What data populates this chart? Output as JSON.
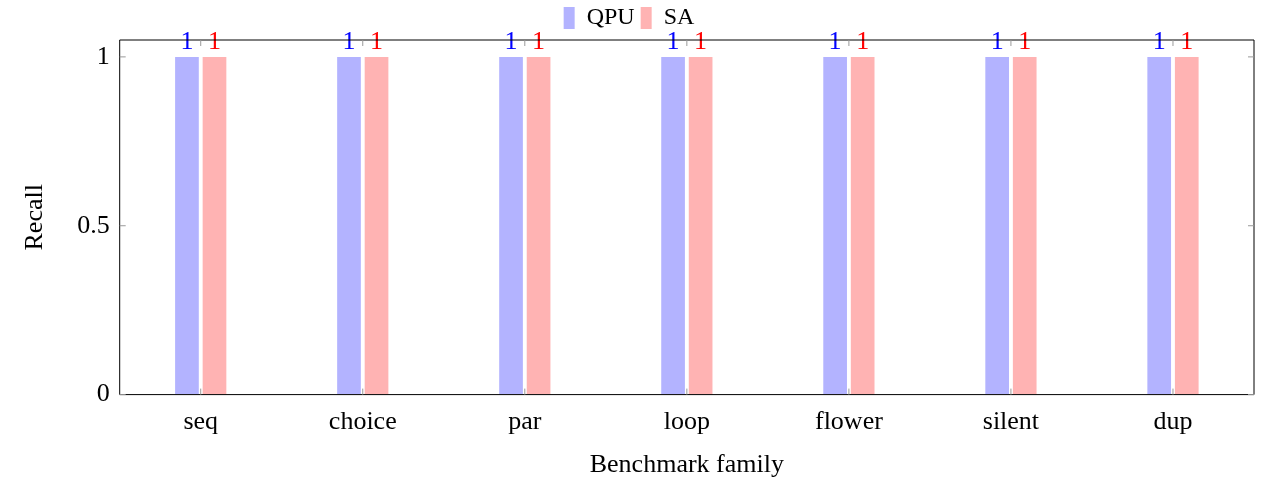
{
  "chart_data": {
    "type": "bar",
    "xlabel": "Benchmark family",
    "ylabel": "Recall",
    "categories": [
      "seq",
      "choice",
      "par",
      "loop",
      "flower",
      "silent",
      "dup"
    ],
    "series": [
      {
        "name": "QPU",
        "color": "#b3b3ff",
        "values": [
          1,
          1,
          1,
          1,
          1,
          1,
          1
        ]
      },
      {
        "name": "SA",
        "color": "#ffb3b3",
        "values": [
          1,
          1,
          1,
          1,
          1,
          1,
          1
        ]
      }
    ],
    "ylim": [
      0,
      1.05
    ],
    "yticks": [
      0,
      0.5,
      1
    ],
    "grid": false,
    "legend": "top",
    "data_labels": true
  }
}
